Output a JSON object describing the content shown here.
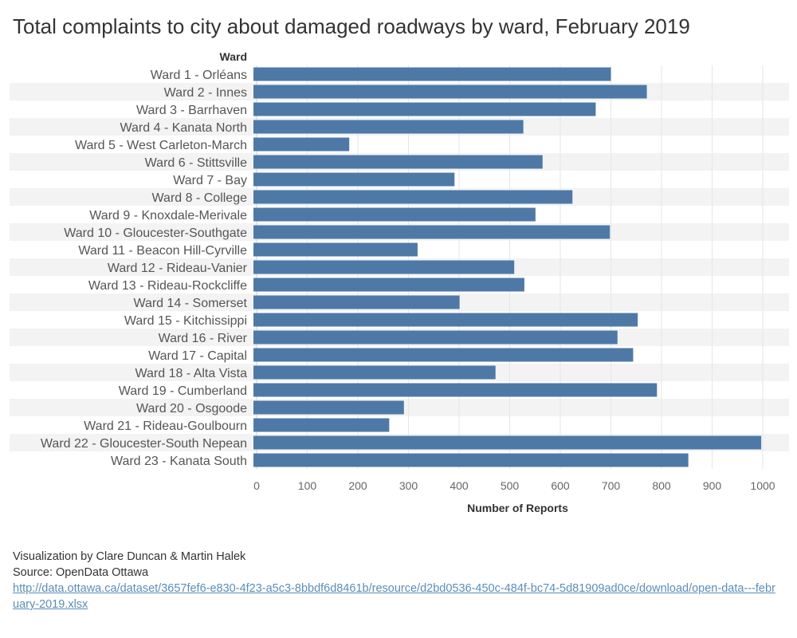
{
  "title": "Total complaints to city about damaged roadways by ward, February 2019",
  "chart_data": {
    "type": "bar",
    "orientation": "horizontal",
    "ylabel": "Ward",
    "xlabel": "Number of Reports",
    "xlim": [
      0,
      1000
    ],
    "x_ticks": [
      "0",
      "100",
      "200",
      "300",
      "400",
      "500",
      "600",
      "700",
      "800",
      "900",
      "1000"
    ],
    "bar_color": "#4e79a7",
    "band_color": "#f3f3f3",
    "grid": true,
    "categories": [
      "Ward 1 - Orléans",
      "Ward 2 - Innes",
      "Ward 3 - Barrhaven",
      "Ward 4 - Kanata North",
      "Ward 5 - West Carleton-March",
      "Ward 6 - Stittsville",
      "Ward 7 - Bay",
      "Ward 8 - College",
      "Ward 9 - Knoxdale-Merivale",
      "Ward 10 - Gloucester-Southgate",
      "Ward 11 - Beacon Hill-Cyrville",
      "Ward 12 - Rideau-Vanier",
      "Ward 13 - Rideau-Rockcliffe",
      "Ward 14 - Somerset",
      "Ward 15 - Kitchissippi",
      "Ward 16 - River",
      "Ward 17 - Capital",
      "Ward 18 - Alta Vista",
      "Ward 19 - Cumberland",
      "Ward 20 - Osgoode",
      "Ward 21 - Rideau-Goulbourn",
      "Ward 22 - Gloucester-South Nepean",
      "Ward 23 - Kanata South"
    ],
    "values": [
      700,
      771,
      670,
      527,
      183,
      565,
      391,
      624,
      551,
      698,
      318,
      509,
      529,
      401,
      753,
      713,
      744,
      472,
      791,
      291,
      262,
      997,
      853
    ]
  },
  "footer": {
    "credit": "Visualization by Clare Duncan & Martin Halek",
    "source": "Source: OpenData Ottawa",
    "link": "http://data.ottawa.ca/dataset/3657fef6-e830-4f23-a5c3-8bbdf6d8461b/resource/d2bd0536-450c-484f-bc74-5d81909ad0ce/download/open-data---february-2019.xlsx"
  }
}
